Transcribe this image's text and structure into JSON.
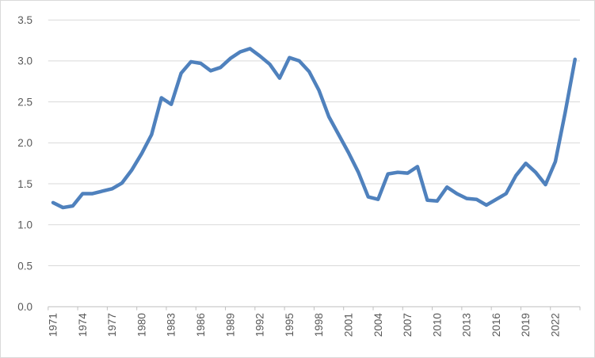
{
  "chart": {
    "background": "#FFFFFF",
    "border_color": "#D9D9D9",
    "gridline_color": "#D9D9D9",
    "axis_line_color": "#BFBFBF",
    "label_color": "#595959",
    "accent_color": "#4F81BD"
  },
  "chart_data": {
    "type": "line",
    "x": [
      1971,
      1972,
      1973,
      1974,
      1975,
      1976,
      1977,
      1978,
      1979,
      1980,
      1981,
      1982,
      1983,
      1984,
      1985,
      1986,
      1987,
      1988,
      1989,
      1990,
      1991,
      1992,
      1993,
      1994,
      1995,
      1996,
      1997,
      1998,
      1999,
      2000,
      2001,
      2002,
      2003,
      2004,
      2005,
      2006,
      2007,
      2008,
      2009,
      2010,
      2011,
      2012,
      2013,
      2014,
      2015,
      2016,
      2017,
      2018,
      2019,
      2020,
      2021,
      2022,
      2023,
      2024
    ],
    "values": [
      1.27,
      1.21,
      1.23,
      1.38,
      1.38,
      1.41,
      1.44,
      1.51,
      1.67,
      1.87,
      2.1,
      2.55,
      2.47,
      2.85,
      2.99,
      2.97,
      2.88,
      2.92,
      3.03,
      3.11,
      3.15,
      3.06,
      2.96,
      2.79,
      3.04,
      3.0,
      2.87,
      2.64,
      2.32,
      2.1,
      1.88,
      1.64,
      1.34,
      1.31,
      1.62,
      1.64,
      1.63,
      1.71,
      1.3,
      1.29,
      1.46,
      1.38,
      1.32,
      1.31,
      1.24,
      1.31,
      1.38,
      1.6,
      1.75,
      1.64,
      1.49,
      1.77,
      2.37,
      3.02
    ],
    "xtick_labels": [
      "1971",
      "1974",
      "1977",
      "1980",
      "1983",
      "1986",
      "1989",
      "1992",
      "1995",
      "1998",
      "2001",
      "2004",
      "2007",
      "2010",
      "2013",
      "2016",
      "2019",
      "2022"
    ],
    "ytick_labels": [
      "0.0",
      "0.5",
      "1.0",
      "1.5",
      "2.0",
      "2.5",
      "3.0",
      "3.5"
    ],
    "ylim": [
      0.0,
      3.5
    ],
    "grid": true,
    "legend": "none",
    "line_color": "#4F81BD"
  }
}
